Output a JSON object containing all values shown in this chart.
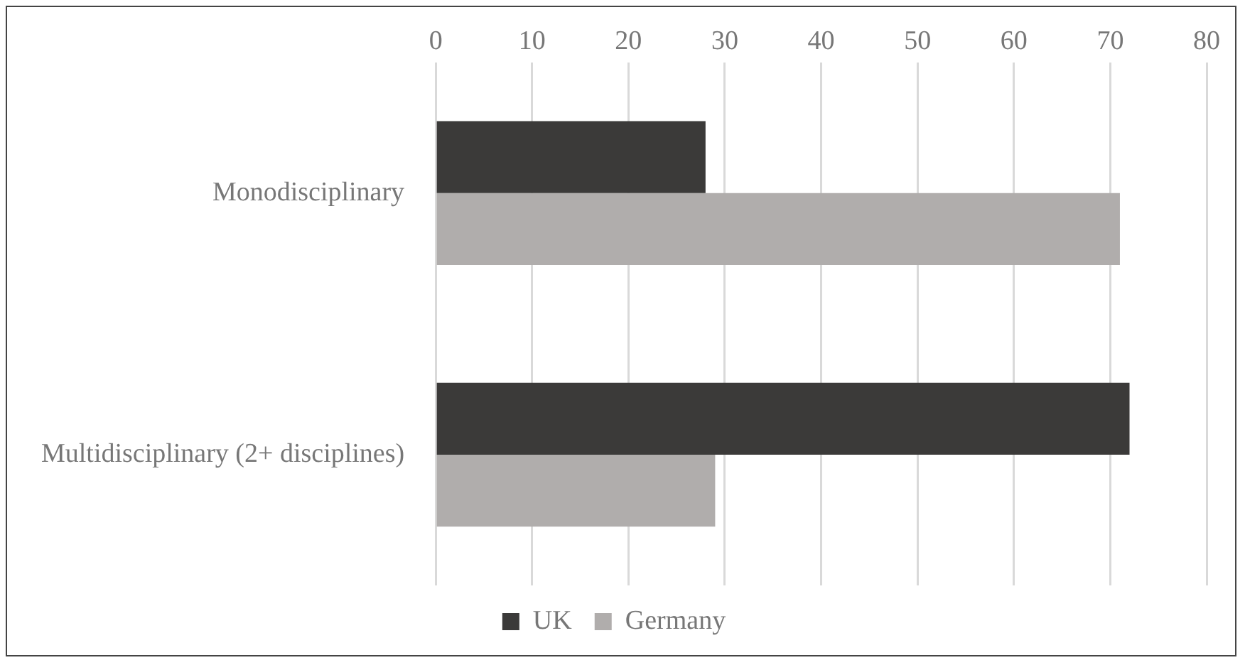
{
  "chart_data": {
    "type": "bar",
    "orientation": "horizontal",
    "categories": [
      "Monodisciplinary",
      "Multidisciplinary (2+ disciplines)"
    ],
    "series": [
      {
        "name": "UK",
        "color": "#3b3a39",
        "values": [
          28,
          72
        ]
      },
      {
        "name": "Germany",
        "color": "#b0adac",
        "values": [
          71,
          29
        ]
      }
    ],
    "xlim": [
      0,
      80
    ],
    "xticks": [
      0,
      10,
      20,
      30,
      40,
      50,
      60,
      70,
      80
    ],
    "grid": "x",
    "legend": "bottom"
  }
}
